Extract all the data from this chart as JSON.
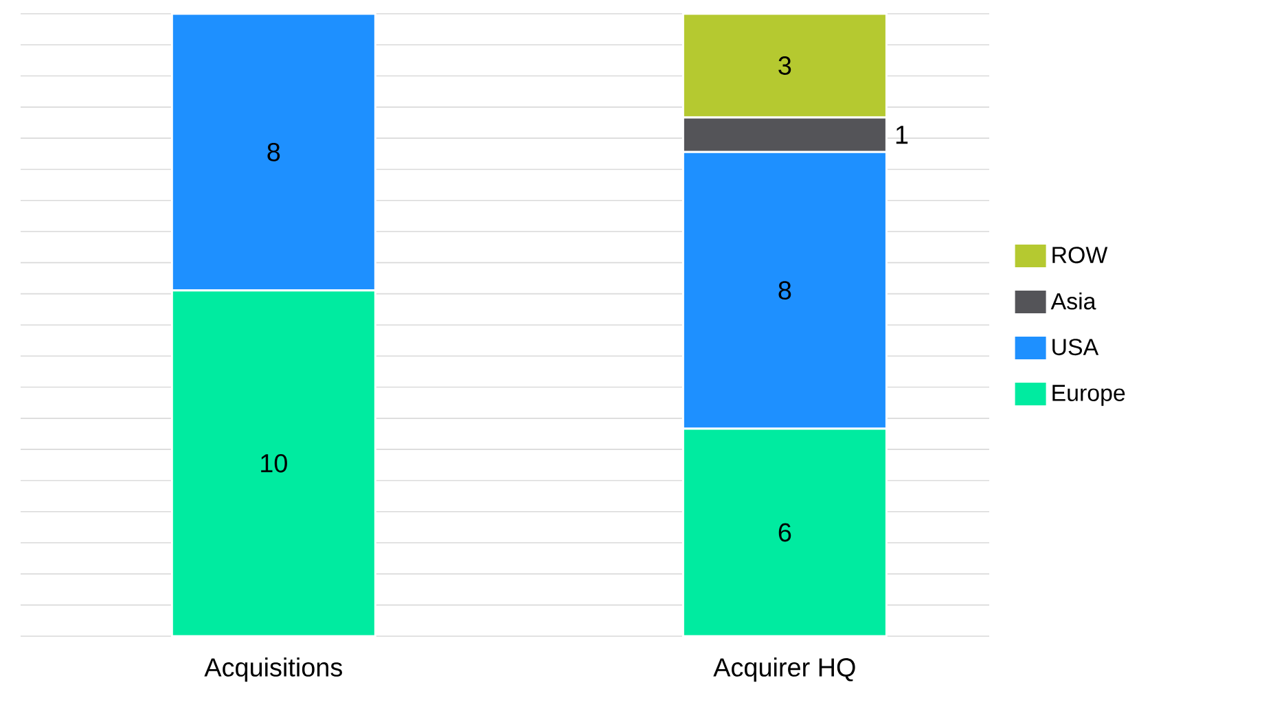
{
  "chart_data": {
    "type": "bar",
    "stacked": true,
    "categories": [
      "Acquisitions",
      "Acquirer HQ"
    ],
    "series": [
      {
        "name": "Europe",
        "color": "#00eba0",
        "values": [
          10,
          6
        ]
      },
      {
        "name": "USA",
        "color": "#1e90ff",
        "values": [
          8,
          8
        ]
      },
      {
        "name": "Asia",
        "color": "#545458",
        "values": [
          null,
          1
        ]
      },
      {
        "name": "ROW",
        "color": "#b5c930",
        "values": [
          null,
          3
        ]
      }
    ],
    "data_labels": true,
    "tick_labels": "x",
    "grid": "y",
    "legend": "right"
  }
}
